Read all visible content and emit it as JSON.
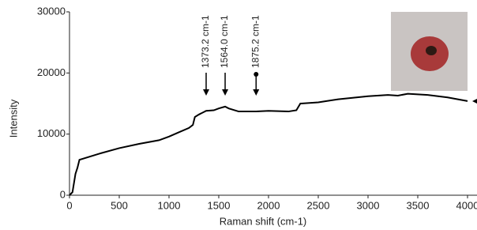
{
  "chart_data": {
    "type": "line",
    "x_label": "Raman shift (cm-1)",
    "y_label": "Intensity",
    "xlim": [
      0,
      4000
    ],
    "xticks": [
      0,
      500,
      1000,
      1500,
      2000,
      2500,
      3000,
      3500,
      4000
    ],
    "ylim": [
      0,
      30000
    ],
    "yticks": [
      0,
      10000,
      20000,
      30000
    ],
    "series": [
      {
        "color": "#000000",
        "x": [
          0,
          30,
          60,
          80,
          100,
          200,
          300,
          500,
          700,
          900,
          1000,
          1100,
          1200,
          1240,
          1260,
          1300,
          1373,
          1450,
          1500,
          1564,
          1600,
          1700,
          1875,
          2000,
          2200,
          2280,
          2320,
          2500,
          2700,
          3000,
          3200,
          3300,
          3400,
          3600,
          3800,
          4000
        ],
        "values": [
          0,
          500,
          3500,
          4500,
          5800,
          6300,
          6800,
          7700,
          8400,
          9000,
          9600,
          10300,
          11000,
          11500,
          12800,
          13200,
          13800,
          13900,
          14200,
          14500,
          14200,
          13700,
          13700,
          13800,
          13700,
          13900,
          15000,
          15200,
          15700,
          16200,
          16400,
          16300,
          16600,
          16400,
          16000,
          15400
        ]
      }
    ],
    "annotations": [
      {
        "x": 1373.2,
        "text": "1373.2 cm-1"
      },
      {
        "x": 1564.0,
        "text": "1564.0 cm-1"
      },
      {
        "x": 1875.2,
        "text": "1875.2 cm-1"
      }
    ]
  }
}
